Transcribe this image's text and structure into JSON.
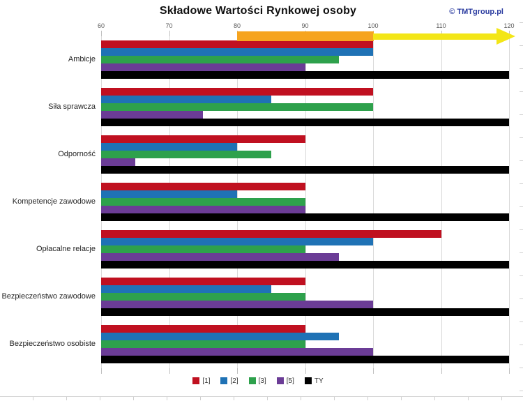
{
  "header": {
    "title": "Składowe Wartości Rynkowej osoby",
    "copyright": "© TMTgroup.pl",
    "copyright_color": "#2B3CA0"
  },
  "chart_data": {
    "type": "bar",
    "orientation": "horizontal",
    "title": "Składowe Wartości Rynkowej osoby",
    "categories": [
      "Ambicje",
      "Siła sprawcza",
      "Odporność",
      "Kompetencje zawodowe",
      "Opłacalne relacje",
      "Bezpieczeństwo zawodowe",
      "Bezpieczeństwo osobiste"
    ],
    "series": [
      {
        "name": "[1]",
        "color": "#C01020",
        "values": [
          100,
          100,
          90,
          90,
          110,
          90,
          90
        ]
      },
      {
        "name": "[2]",
        "color": "#1F72B5",
        "values": [
          100,
          85,
          80,
          80,
          100,
          85,
          95
        ]
      },
      {
        "name": "[3]",
        "color": "#2EA14C",
        "values": [
          95,
          100,
          85,
          90,
          90,
          90,
          90
        ]
      },
      {
        "name": "[5]",
        "color": "#6B3C96",
        "values": [
          90,
          75,
          65,
          90,
          95,
          100,
          100
        ]
      },
      {
        "name": "TY",
        "color": "#000000",
        "values": [
          120,
          120,
          120,
          120,
          120,
          120,
          120
        ]
      }
    ],
    "x_axis": {
      "min": 60,
      "max": 120,
      "ticks": [
        60,
        70,
        80,
        90,
        100,
        110,
        120
      ],
      "position": "top"
    },
    "grid": true,
    "gridline_color": "#D9D9D9",
    "legend": {
      "position": "bottom",
      "entries": [
        "[1]",
        "[2]",
        "[3]",
        "[5]",
        "TY"
      ]
    },
    "annotation_arrow": {
      "from": 80,
      "to": 120,
      "tail_color": "#F6A41F",
      "head_color": "#F3E617"
    }
  }
}
